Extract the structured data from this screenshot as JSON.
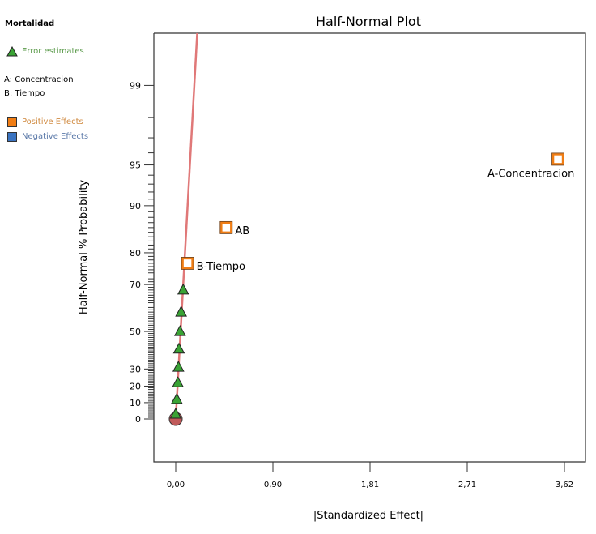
{
  "legend": {
    "response": "Mortalidad",
    "error_label": "Error estimates",
    "factors": [
      "A: Concentracion",
      "B: Tiempo"
    ],
    "positive_label": "Positive Effects",
    "negative_label": "Negative Effects"
  },
  "colors": {
    "error": "#3aa335",
    "positive": "#f07d14",
    "negative": "#3a73c0",
    "line": "#e07878",
    "origin": "#c05a5a",
    "error_text": "#5a9a4a",
    "positive_text": "#d08a40",
    "negative_text": "#5a78a8"
  },
  "chart_data": {
    "type": "scatter",
    "title": "Half-Normal Plot",
    "xlabel": "|Standardized Effect|",
    "ylabel": "Half-Normal % Probability",
    "x_ticks": [
      "0,00",
      "0,90",
      "1,81",
      "2,71",
      "3,62"
    ],
    "x_tick_values": [
      0,
      0.905,
      1.81,
      2.715,
      3.62
    ],
    "y_ticks": [
      0,
      10,
      20,
      30,
      50,
      70,
      80,
      90,
      95,
      99
    ],
    "y_scale": "half-normal probability",
    "grid": false,
    "effects": [
      {
        "label": "A-Concentracion",
        "x": 3.56,
        "y": 95.5,
        "sign": "positive"
      },
      {
        "label": "AB",
        "x": 0.47,
        "y": 86,
        "sign": "positive"
      },
      {
        "label": "B-Tiempo",
        "x": 0.11,
        "y": 77,
        "sign": "positive"
      }
    ],
    "error_estimates": [
      {
        "x": 0.0,
        "y": 3
      },
      {
        "x": 0.01,
        "y": 12
      },
      {
        "x": 0.02,
        "y": 22
      },
      {
        "x": 0.025,
        "y": 31
      },
      {
        "x": 0.03,
        "y": 41
      },
      {
        "x": 0.04,
        "y": 50
      },
      {
        "x": 0.05,
        "y": 59
      },
      {
        "x": 0.07,
        "y": 68
      }
    ],
    "origin_point": {
      "x": 0,
      "y": 0
    },
    "reference_line": {
      "x0": 0,
      "y0": 0,
      "x1": 0.2,
      "y1": 99.7
    }
  }
}
